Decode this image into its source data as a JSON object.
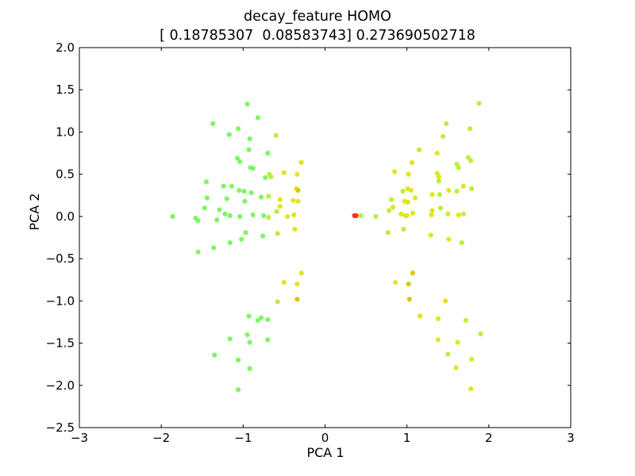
{
  "chart_data": {
    "type": "scatter",
    "title": "decay_feature HOMO",
    "subtitle": "[ 0.18785307  0.08583743] 0.273690502718",
    "xlabel": "PCA 1",
    "ylabel": "PCA 2",
    "xlim": [
      -3,
      3
    ],
    "ylim": [
      -2.5,
      2.0
    ],
    "xticks": [
      -3,
      -2,
      -1,
      0,
      1,
      2,
      3
    ],
    "xtick_labels": [
      "−3",
      "−2",
      "−1",
      "0",
      "1",
      "2",
      "3"
    ],
    "yticks": [
      -2.5,
      -2.0,
      -1.5,
      -1.0,
      -0.5,
      0.0,
      0.5,
      1.0,
      1.5,
      2.0
    ],
    "ytick_labels": [
      "−2.5",
      "−2.0",
      "−1.5",
      "−1.0",
      "−0.5",
      "0.0",
      "0.5",
      "1.0",
      "1.5",
      "2.0"
    ],
    "grid": false,
    "legend": "none",
    "colors": {
      "green": "#7ff562",
      "lime": "#b8f03f",
      "yellow": "#e1e51c",
      "gold": "#d6c80e",
      "red": "#f03a12"
    },
    "points": [
      {
        "x": -1.86,
        "y": 0.0,
        "c": "green"
      },
      {
        "x": -1.58,
        "y": -0.02,
        "c": "green"
      },
      {
        "x": -1.55,
        "y": -0.42,
        "c": "green"
      },
      {
        "x": -1.55,
        "y": -0.05,
        "c": "green"
      },
      {
        "x": -1.47,
        "y": 0.1,
        "c": "green"
      },
      {
        "x": -1.45,
        "y": 0.41,
        "c": "green"
      },
      {
        "x": -1.44,
        "y": 0.22,
        "c": "green"
      },
      {
        "x": -1.37,
        "y": 1.1,
        "c": "green"
      },
      {
        "x": -1.36,
        "y": -0.37,
        "c": "green"
      },
      {
        "x": -1.32,
        "y": -0.04,
        "c": "green"
      },
      {
        "x": -1.29,
        "y": 0.08,
        "c": "green"
      },
      {
        "x": -1.24,
        "y": 0.36,
        "c": "green"
      },
      {
        "x": -1.22,
        "y": 0.03,
        "c": "green"
      },
      {
        "x": -1.2,
        "y": 0.21,
        "c": "green"
      },
      {
        "x": -1.17,
        "y": 0.97,
        "c": "green"
      },
      {
        "x": -1.16,
        "y": -0.31,
        "c": "green"
      },
      {
        "x": -1.16,
        "y": 0.01,
        "c": "green"
      },
      {
        "x": -1.14,
        "y": 0.36,
        "c": "green"
      },
      {
        "x": -1.07,
        "y": 0.69,
        "c": "green"
      },
      {
        "x": -1.06,
        "y": 1.04,
        "c": "green"
      },
      {
        "x": -1.05,
        "y": 0.31,
        "c": "green"
      },
      {
        "x": -1.04,
        "y": 0.65,
        "c": "green"
      },
      {
        "x": -1.04,
        "y": 0.0,
        "c": "green"
      },
      {
        "x": -1.02,
        "y": -0.27,
        "c": "green"
      },
      {
        "x": -0.99,
        "y": 0.3,
        "c": "green"
      },
      {
        "x": -0.98,
        "y": 0.18,
        "c": "green"
      },
      {
        "x": -0.97,
        "y": -0.19,
        "c": "green"
      },
      {
        "x": -0.95,
        "y": 1.33,
        "c": "green"
      },
      {
        "x": -0.93,
        "y": 0.79,
        "c": "green"
      },
      {
        "x": -0.92,
        "y": 0.92,
        "c": "green"
      },
      {
        "x": -0.91,
        "y": 0.58,
        "c": "green"
      },
      {
        "x": -0.9,
        "y": 0.28,
        "c": "green"
      },
      {
        "x": -0.88,
        "y": 0.57,
        "c": "green"
      },
      {
        "x": -0.88,
        "y": 0.02,
        "c": "green"
      },
      {
        "x": -0.82,
        "y": 1.17,
        "c": "green"
      },
      {
        "x": -0.78,
        "y": 0.23,
        "c": "green"
      },
      {
        "x": -0.76,
        "y": -0.23,
        "c": "green"
      },
      {
        "x": -0.75,
        "y": 0.01,
        "c": "green"
      },
      {
        "x": -0.73,
        "y": 0.46,
        "c": "green"
      },
      {
        "x": -0.7,
        "y": 0.75,
        "c": "green"
      },
      {
        "x": -0.69,
        "y": 0.24,
        "c": "lime"
      },
      {
        "x": -0.69,
        "y": -0.01,
        "c": "lime"
      },
      {
        "x": -0.68,
        "y": 0.5,
        "c": "lime"
      },
      {
        "x": -0.66,
        "y": 0.47,
        "c": "lime"
      },
      {
        "x": -0.6,
        "y": 0.96,
        "c": "lime"
      },
      {
        "x": -0.59,
        "y": 0.06,
        "c": "lime"
      },
      {
        "x": -0.58,
        "y": -0.2,
        "c": "lime"
      },
      {
        "x": -0.55,
        "y": 0.2,
        "c": "yellow"
      },
      {
        "x": -0.55,
        "y": 0.12,
        "c": "yellow"
      },
      {
        "x": -0.5,
        "y": 0.52,
        "c": "yellow"
      },
      {
        "x": -0.46,
        "y": 0.0,
        "c": "yellow"
      },
      {
        "x": -0.39,
        "y": 0.19,
        "c": "yellow"
      },
      {
        "x": -0.38,
        "y": 0.02,
        "c": "yellow"
      },
      {
        "x": -0.37,
        "y": -0.15,
        "c": "yellow"
      },
      {
        "x": -0.35,
        "y": 0.33,
        "c": "yellow"
      },
      {
        "x": -0.34,
        "y": 0.5,
        "c": "yellow"
      },
      {
        "x": -0.33,
        "y": 0.31,
        "c": "gold"
      },
      {
        "x": -0.33,
        "y": 0.18,
        "c": "yellow"
      },
      {
        "x": -0.29,
        "y": 0.64,
        "c": "yellow"
      },
      {
        "x": -1.35,
        "y": -1.64,
        "c": "green"
      },
      {
        "x": -1.16,
        "y": -1.45,
        "c": "green"
      },
      {
        "x": -1.06,
        "y": -1.7,
        "c": "green"
      },
      {
        "x": -1.06,
        "y": -2.05,
        "c": "green"
      },
      {
        "x": -0.95,
        "y": -1.4,
        "c": "green"
      },
      {
        "x": -0.93,
        "y": -1.18,
        "c": "green"
      },
      {
        "x": -0.92,
        "y": -1.49,
        "c": "green"
      },
      {
        "x": -0.92,
        "y": -1.8,
        "c": "green"
      },
      {
        "x": -0.82,
        "y": -1.23,
        "c": "green"
      },
      {
        "x": -0.78,
        "y": -1.2,
        "c": "green"
      },
      {
        "x": -0.7,
        "y": -1.46,
        "c": "green"
      },
      {
        "x": -0.7,
        "y": -1.22,
        "c": "green"
      },
      {
        "x": -0.58,
        "y": -1.01,
        "c": "lime"
      },
      {
        "x": -0.5,
        "y": -0.78,
        "c": "yellow"
      },
      {
        "x": -0.34,
        "y": -0.8,
        "c": "yellow"
      },
      {
        "x": -0.34,
        "y": -0.98,
        "c": "gold"
      },
      {
        "x": -0.29,
        "y": -0.67,
        "c": "yellow"
      },
      {
        "x": 0.36,
        "y": 0.01,
        "c": "red"
      },
      {
        "x": 0.38,
        "y": 0.01,
        "c": "red"
      },
      {
        "x": 0.44,
        "y": 0.01,
        "c": "lime"
      },
      {
        "x": 0.62,
        "y": 0.0,
        "c": "lime"
      },
      {
        "x": 0.77,
        "y": -0.19,
        "c": "lime"
      },
      {
        "x": 0.78,
        "y": 0.07,
        "c": "lime"
      },
      {
        "x": 0.81,
        "y": 0.2,
        "c": "lime"
      },
      {
        "x": 0.83,
        "y": 0.11,
        "c": "yellow"
      },
      {
        "x": 0.85,
        "y": 0.53,
        "c": "yellow"
      },
      {
        "x": 0.86,
        "y": -0.78,
        "c": "yellow"
      },
      {
        "x": 0.93,
        "y": 0.03,
        "c": "yellow"
      },
      {
        "x": 0.95,
        "y": 0.3,
        "c": "lime"
      },
      {
        "x": 0.96,
        "y": -0.15,
        "c": "lime"
      },
      {
        "x": 0.97,
        "y": 0.18,
        "c": "yellow"
      },
      {
        "x": 0.98,
        "y": 0.01,
        "c": "yellow"
      },
      {
        "x": 1.0,
        "y": 0.01,
        "c": "yellow"
      },
      {
        "x": 1.01,
        "y": 0.17,
        "c": "yellow"
      },
      {
        "x": 1.01,
        "y": 0.33,
        "c": "yellow"
      },
      {
        "x": 1.02,
        "y": 0.5,
        "c": "yellow"
      },
      {
        "x": 1.02,
        "y": -0.8,
        "c": "gold"
      },
      {
        "x": 1.03,
        "y": -0.98,
        "c": "gold"
      },
      {
        "x": 1.05,
        "y": 0.31,
        "c": "yellow"
      },
      {
        "x": 1.06,
        "y": 0.64,
        "c": "yellow"
      },
      {
        "x": 1.07,
        "y": 0.04,
        "c": "yellow"
      },
      {
        "x": 1.07,
        "y": -0.67,
        "c": "gold"
      },
      {
        "x": 1.1,
        "y": 0.22,
        "c": "yellow"
      },
      {
        "x": 1.15,
        "y": 0.79,
        "c": "lime"
      },
      {
        "x": 1.16,
        "y": -1.18,
        "c": "yellow"
      },
      {
        "x": 1.29,
        "y": -0.22,
        "c": "yellow"
      },
      {
        "x": 1.3,
        "y": 0.02,
        "c": "yellow"
      },
      {
        "x": 1.31,
        "y": 0.26,
        "c": "yellow"
      },
      {
        "x": 1.31,
        "y": 0.07,
        "c": "yellow"
      },
      {
        "x": 1.37,
        "y": 0.51,
        "c": "yellow"
      },
      {
        "x": 1.37,
        "y": 0.75,
        "c": "yellow"
      },
      {
        "x": 1.38,
        "y": -1.21,
        "c": "yellow"
      },
      {
        "x": 1.38,
        "y": -1.46,
        "c": "yellow"
      },
      {
        "x": 1.39,
        "y": 0.47,
        "c": "yellow"
      },
      {
        "x": 1.39,
        "y": 0.42,
        "c": "lime"
      },
      {
        "x": 1.4,
        "y": 0.26,
        "c": "lime"
      },
      {
        "x": 1.41,
        "y": 0.1,
        "c": "lime"
      },
      {
        "x": 1.44,
        "y": 0.95,
        "c": "lime"
      },
      {
        "x": 1.47,
        "y": -1.0,
        "c": "yellow"
      },
      {
        "x": 1.48,
        "y": 1.1,
        "c": "lime"
      },
      {
        "x": 1.5,
        "y": -1.63,
        "c": "lime"
      },
      {
        "x": 1.5,
        "y": 0.03,
        "c": "yellow"
      },
      {
        "x": 1.51,
        "y": -0.27,
        "c": "yellow"
      },
      {
        "x": 1.51,
        "y": 0.31,
        "c": "yellow"
      },
      {
        "x": 1.6,
        "y": -1.79,
        "c": "yellow"
      },
      {
        "x": 1.61,
        "y": 0.3,
        "c": "lime"
      },
      {
        "x": 1.61,
        "y": 0.62,
        "c": "lime"
      },
      {
        "x": 1.62,
        "y": -1.49,
        "c": "yellow"
      },
      {
        "x": 1.63,
        "y": 0.58,
        "c": "lime"
      },
      {
        "x": 1.63,
        "y": 0.02,
        "c": "yellow"
      },
      {
        "x": 1.67,
        "y": -0.31,
        "c": "lime"
      },
      {
        "x": 1.69,
        "y": 0.03,
        "c": "lime"
      },
      {
        "x": 1.69,
        "y": 0.36,
        "c": "yellow"
      },
      {
        "x": 1.72,
        "y": -1.23,
        "c": "lime"
      },
      {
        "x": 1.75,
        "y": 0.7,
        "c": "lime"
      },
      {
        "x": 1.77,
        "y": 1.04,
        "c": "lime"
      },
      {
        "x": 1.78,
        "y": 0.66,
        "c": "lime"
      },
      {
        "x": 1.78,
        "y": -2.04,
        "c": "yellow"
      },
      {
        "x": 1.79,
        "y": -1.69,
        "c": "yellow"
      },
      {
        "x": 1.79,
        "y": 0.33,
        "c": "lime"
      },
      {
        "x": 1.88,
        "y": 1.34,
        "c": "lime"
      },
      {
        "x": 1.9,
        "y": -1.39,
        "c": "lime"
      }
    ]
  }
}
